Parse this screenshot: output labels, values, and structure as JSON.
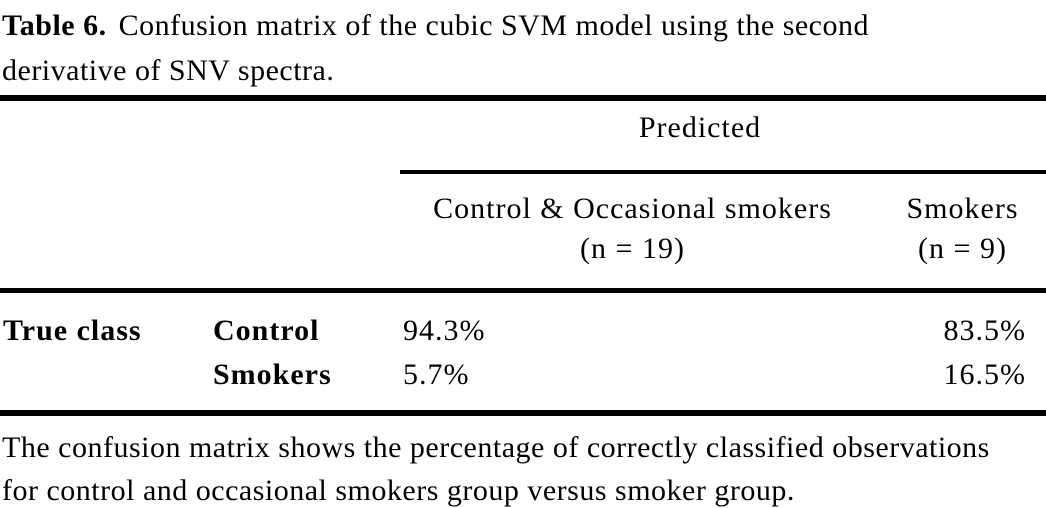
{
  "page": {
    "background_color": "#ffffff",
    "text_color": "#000000",
    "rule_color": "#000000"
  },
  "caption": {
    "label": "Table 6.",
    "text": "Confusion matrix of the cubic SVM model using the second derivative of SNV spectra."
  },
  "table": {
    "group_header": "Predicted",
    "columns": [
      {
        "title": "Control & Occasional smokers",
        "subtitle": "(n = 19)"
      },
      {
        "title": "Smokers",
        "subtitle": "(n = 9)"
      }
    ],
    "stub_header": "True class",
    "rows": [
      {
        "label": "Control",
        "values": [
          "94.3%",
          "83.5%"
        ]
      },
      {
        "label": "Smokers",
        "values": [
          "5.7%",
          "16.5%"
        ]
      }
    ]
  },
  "footnote": "The confusion matrix shows the percentage of correctly classified observations for control and occasional smokers group versus smoker group."
}
